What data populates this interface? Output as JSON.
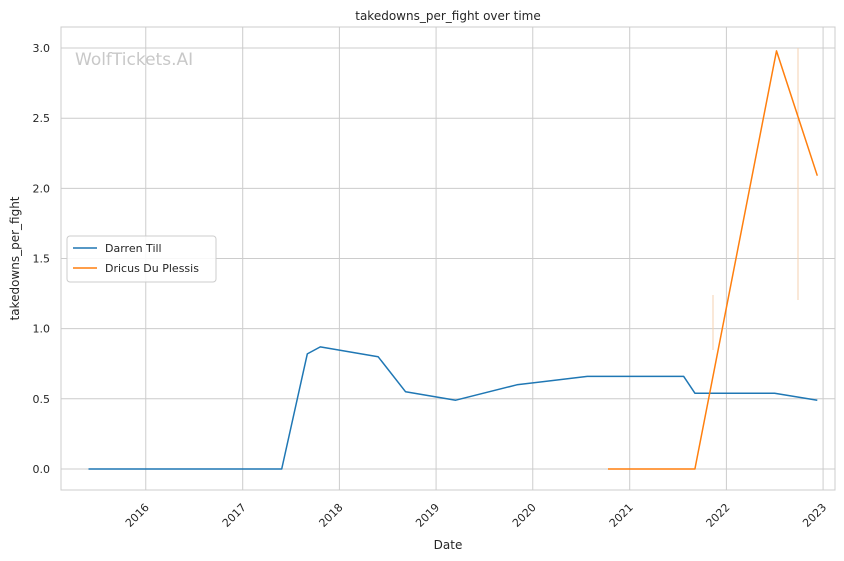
{
  "chart_data": {
    "type": "line",
    "title": "takedowns_per_fight over time",
    "xlabel": "Date",
    "ylabel": "takedowns_per_fight",
    "watermark": "WolfTickets.AI",
    "xlim": [
      "2015-02-15",
      "2023-02-15"
    ],
    "ylim": [
      -0.15,
      3.15
    ],
    "x_ticks": [
      "2016-01-01",
      "2017-01-01",
      "2018-01-01",
      "2019-01-01",
      "2020-01-01",
      "2021-01-01",
      "2022-01-01",
      "2023-01-01"
    ],
    "x_tick_labels": [
      "2016",
      "2017",
      "2018",
      "2019",
      "2020",
      "2021",
      "2022",
      "2023"
    ],
    "y_ticks": [
      0.0,
      0.5,
      1.0,
      1.5,
      2.0,
      2.5,
      3.0
    ],
    "y_tick_labels": [
      "0.0",
      "0.5",
      "1.0",
      "1.5",
      "2.0",
      "2.5",
      "3.0"
    ],
    "grid": true,
    "legend_position": "center-left",
    "series": [
      {
        "name": "Darren Till",
        "color": "#1f77b4",
        "points": [
          {
            "x": "2015-05-30",
            "y": 0.0
          },
          {
            "x": "2017-05-28",
            "y": 0.0
          },
          {
            "x": "2017-09-02",
            "y": 0.82
          },
          {
            "x": "2017-10-21",
            "y": 0.87
          },
          {
            "x": "2018-05-27",
            "y": 0.8
          },
          {
            "x": "2018-09-08",
            "y": 0.55
          },
          {
            "x": "2019-03-16",
            "y": 0.49
          },
          {
            "x": "2019-11-02",
            "y": 0.6
          },
          {
            "x": "2020-07-25",
            "y": 0.66
          },
          {
            "x": "2021-07-24",
            "y": 0.66
          },
          {
            "x": "2021-09-04",
            "y": 0.54
          },
          {
            "x": "2022-07-02",
            "y": 0.54
          },
          {
            "x": "2022-12-10",
            "y": 0.49
          }
        ]
      },
      {
        "name": "Dricus Du Plessis",
        "color": "#ff7f0e",
        "points": [
          {
            "x": "2020-10-11",
            "y": 0.0
          },
          {
            "x": "2021-09-04",
            "y": 0.0
          },
          {
            "x": "2022-07-09",
            "y": 2.98
          },
          {
            "x": "2022-12-10",
            "y": 2.09
          }
        ]
      }
    ]
  }
}
